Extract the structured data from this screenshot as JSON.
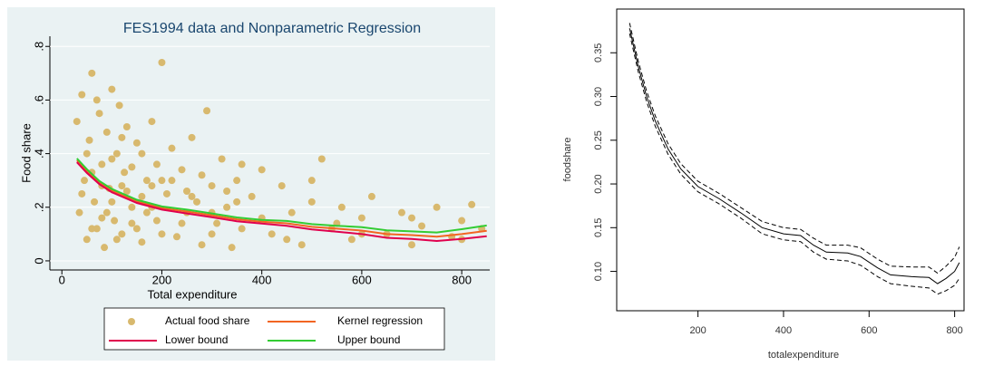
{
  "chart_data": [
    {
      "type": "scatter",
      "title": "FES1994  data and Nonparametric Regression",
      "x_label": "Total expenditure",
      "y_label": "Food share",
      "xlim": [
        -24,
        856
      ],
      "ylim": [
        -0.034,
        0.838
      ],
      "xticks": [
        0,
        200,
        400,
        600,
        800
      ],
      "yticks": [
        0,
        {
          "value": 0.2,
          "label": ".2"
        },
        {
          "value": 0.4,
          "label": ".4"
        },
        {
          "value": 0.6,
          "label": ".6"
        },
        {
          "value": 0.8,
          "label": ".8"
        }
      ],
      "series": [
        {
          "name": "Actual food share",
          "type": "scatter",
          "color": "#d8b96e",
          "x": [
            30,
            35,
            40,
            45,
            50,
            55,
            60,
            65,
            70,
            75,
            80,
            85,
            90,
            95,
            100,
            105,
            110,
            115,
            120,
            125,
            130,
            140,
            150,
            160,
            170,
            180,
            190,
            200,
            210,
            220,
            230,
            240,
            250,
            260,
            270,
            280,
            290,
            300,
            310,
            320,
            330,
            340,
            350,
            360,
            380,
            400,
            420,
            440,
            460,
            480,
            500,
            520,
            540,
            560,
            580,
            600,
            620,
            650,
            680,
            700,
            720,
            750,
            780,
            800,
            820,
            840,
            40,
            50,
            60,
            70,
            80,
            90,
            100,
            110,
            120,
            130,
            140,
            150,
            160,
            170,
            180,
            190,
            200,
            220,
            240,
            260,
            280,
            300,
            330,
            360,
            400,
            450,
            500,
            550,
            600,
            700,
            800,
            60,
            80,
            100,
            120,
            140,
            160,
            180,
            200,
            250,
            300,
            350
          ],
          "values": [
            0.52,
            0.18,
            0.62,
            0.3,
            0.08,
            0.45,
            0.7,
            0.22,
            0.12,
            0.55,
            0.36,
            0.05,
            0.48,
            0.27,
            0.64,
            0.15,
            0.4,
            0.58,
            0.1,
            0.33,
            0.5,
            0.2,
            0.44,
            0.07,
            0.3,
            0.52,
            0.15,
            0.74,
            0.25,
            0.42,
            0.09,
            0.34,
            0.18,
            0.46,
            0.22,
            0.06,
            0.56,
            0.28,
            0.14,
            0.38,
            0.2,
            0.05,
            0.3,
            0.12,
            0.24,
            0.34,
            0.1,
            0.28,
            0.18,
            0.06,
            0.22,
            0.38,
            0.12,
            0.2,
            0.08,
            0.16,
            0.24,
            0.1,
            0.18,
            0.06,
            0.13,
            0.2,
            0.09,
            0.15,
            0.21,
            0.12,
            0.25,
            0.4,
            0.12,
            0.6,
            0.28,
            0.18,
            0.38,
            0.08,
            0.46,
            0.26,
            0.35,
            0.12,
            0.4,
            0.18,
            0.28,
            0.36,
            0.1,
            0.3,
            0.14,
            0.24,
            0.32,
            0.1,
            0.26,
            0.36,
            0.16,
            0.08,
            0.3,
            0.14,
            0.1,
            0.16,
            0.08,
            0.33,
            0.16,
            0.22,
            0.28,
            0.14,
            0.24,
            0.2,
            0.3,
            0.26,
            0.18,
            0.22
          ]
        },
        {
          "name": "Kernel regression",
          "type": "line",
          "color": "#f26522",
          "x": [
            30,
            50,
            75,
            100,
            150,
            200,
            250,
            300,
            350,
            400,
            450,
            500,
            550,
            600,
            650,
            700,
            750,
            800,
            850
          ],
          "values": [
            0.375,
            0.335,
            0.292,
            0.262,
            0.222,
            0.197,
            0.184,
            0.17,
            0.155,
            0.146,
            0.14,
            0.127,
            0.12,
            0.113,
            0.1,
            0.096,
            0.09,
            0.1,
            0.112
          ]
        },
        {
          "name": "Lower bound",
          "type": "line",
          "color": "#e0004d",
          "x": [
            30,
            50,
            75,
            100,
            150,
            200,
            250,
            300,
            350,
            400,
            450,
            500,
            550,
            600,
            650,
            700,
            750,
            800,
            850
          ],
          "values": [
            0.368,
            0.328,
            0.286,
            0.256,
            0.216,
            0.191,
            0.177,
            0.163,
            0.148,
            0.139,
            0.131,
            0.117,
            0.109,
            0.1,
            0.086,
            0.082,
            0.074,
            0.082,
            0.092
          ]
        },
        {
          "name": "Upper bound",
          "type": "line",
          "color": "#33cc33",
          "x": [
            30,
            50,
            75,
            100,
            150,
            200,
            250,
            300,
            350,
            400,
            450,
            500,
            550,
            600,
            650,
            700,
            750,
            800,
            850
          ],
          "values": [
            0.382,
            0.342,
            0.298,
            0.268,
            0.228,
            0.203,
            0.191,
            0.177,
            0.162,
            0.153,
            0.149,
            0.137,
            0.131,
            0.126,
            0.114,
            0.11,
            0.106,
            0.118,
            0.132
          ]
        }
      ]
    },
    {
      "type": "line",
      "x_label": "totalexpenditure",
      "y_label": "foodshare",
      "xlim": [
        10,
        822
      ],
      "ylim": [
        0.055,
        0.4
      ],
      "xticks": [
        200,
        400,
        600,
        800
      ],
      "yticks": [
        {
          "value": 0.1,
          "label": "0.10"
        },
        0.15,
        {
          "value": 0.2,
          "label": "0.20"
        },
        0.25,
        {
          "value": 0.3,
          "label": "0.30"
        },
        0.35
      ],
      "series": [
        {
          "color": "#000000",
          "dashed": false,
          "x": [
            40,
            60,
            80,
            100,
            130,
            160,
            200,
            250,
            300,
            350,
            400,
            440,
            470,
            500,
            550,
            580,
            620,
            650,
            700,
            740,
            760,
            780,
            800,
            811
          ],
          "values": [
            0.378,
            0.335,
            0.3,
            0.272,
            0.24,
            0.217,
            0.197,
            0.183,
            0.167,
            0.15,
            0.143,
            0.141,
            0.13,
            0.122,
            0.121,
            0.117,
            0.104,
            0.096,
            0.094,
            0.093,
            0.086,
            0.092,
            0.1,
            0.11
          ]
        },
        {
          "color": "#000000",
          "dashed": true,
          "x": [
            40,
            60,
            80,
            100,
            130,
            160,
            200,
            250,
            300,
            350,
            400,
            440,
            470,
            500,
            550,
            580,
            620,
            650,
            700,
            740,
            760,
            780,
            800,
            811
          ],
          "values": [
            0.384,
            0.341,
            0.306,
            0.278,
            0.246,
            0.223,
            0.203,
            0.189,
            0.173,
            0.157,
            0.15,
            0.148,
            0.138,
            0.13,
            0.13,
            0.127,
            0.114,
            0.106,
            0.105,
            0.105,
            0.098,
            0.106,
            0.116,
            0.128
          ]
        },
        {
          "color": "#000000",
          "dashed": true,
          "x": [
            40,
            60,
            80,
            100,
            130,
            160,
            200,
            250,
            300,
            350,
            400,
            440,
            470,
            500,
            550,
            580,
            620,
            650,
            700,
            740,
            760,
            780,
            800,
            811
          ],
          "values": [
            0.372,
            0.329,
            0.294,
            0.266,
            0.234,
            0.211,
            0.191,
            0.177,
            0.161,
            0.143,
            0.136,
            0.134,
            0.122,
            0.114,
            0.112,
            0.107,
            0.094,
            0.086,
            0.083,
            0.081,
            0.074,
            0.078,
            0.084,
            0.092
          ]
        }
      ]
    }
  ]
}
